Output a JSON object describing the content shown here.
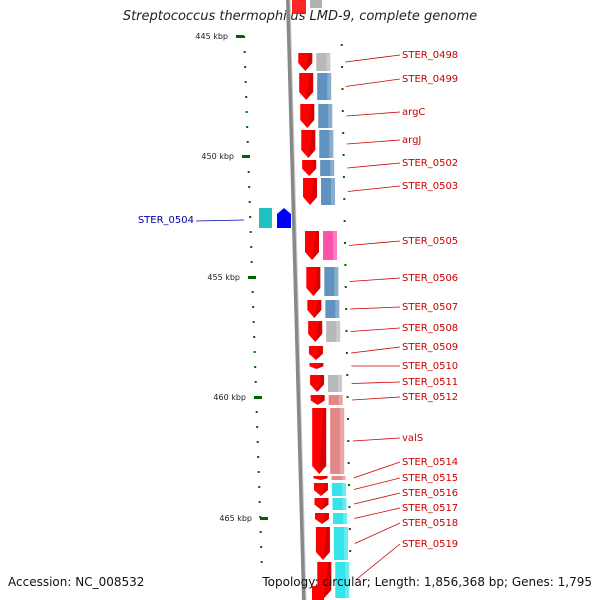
{
  "title": "Streptococcus thermophilus LMD-9, complete genome",
  "accession": "Accession: NC_008532",
  "summary": "Topology: circular; Length: 1,856,368 bp; Genes: 1,795",
  "colors": {
    "forward_gene": "#ff0000",
    "reverse_gene": "#0000ff",
    "backbone": "#888888",
    "tick": "#006400",
    "label_forward": "#cc0000",
    "label_reverse": "#0000aa",
    "category_steelblue": "#4f86b8",
    "category_grey": "#b0b0b0",
    "category_pink": "#ff3fa0",
    "category_salmon": "#e07a7a",
    "category_cyan": "#20e0e8",
    "category_teal": "#20c0c0"
  },
  "scale_labels": [
    "445 kbp",
    "450 kbp",
    "455 kbp",
    "460 kbp",
    "465 kbp"
  ],
  "genes": [
    {
      "label": "STER_0498",
      "strand": "forward",
      "category": "grey"
    },
    {
      "label": "STER_0499",
      "strand": "forward",
      "category": "steelblue"
    },
    {
      "label": "argC",
      "strand": "forward",
      "category": "steelblue"
    },
    {
      "label": "argJ",
      "strand": "forward",
      "category": "steelblue"
    },
    {
      "label": "STER_0502",
      "strand": "forward",
      "category": "steelblue"
    },
    {
      "label": "STER_0503",
      "strand": "forward",
      "category": "steelblue"
    },
    {
      "label": "STER_0504",
      "strand": "reverse",
      "category": "teal"
    },
    {
      "label": "STER_0505",
      "strand": "forward",
      "category": "pink"
    },
    {
      "label": "STER_0506",
      "strand": "forward",
      "category": "steelblue"
    },
    {
      "label": "STER_0507",
      "strand": "forward",
      "category": "steelblue"
    },
    {
      "label": "STER_0508",
      "strand": "forward",
      "category": "grey"
    },
    {
      "label": "STER_0509",
      "strand": "forward",
      "category": "none"
    },
    {
      "label": "STER_0510",
      "strand": "forward",
      "category": "none"
    },
    {
      "label": "STER_0511",
      "strand": "forward",
      "category": "grey"
    },
    {
      "label": "STER_0512",
      "strand": "forward",
      "category": "salmon"
    },
    {
      "label": "valS",
      "strand": "forward",
      "category": "salmon"
    },
    {
      "label": "STER_0514",
      "strand": "forward",
      "category": "salmon"
    },
    {
      "label": "STER_0515",
      "strand": "forward",
      "category": "cyan"
    },
    {
      "label": "STER_0516",
      "strand": "forward",
      "category": "cyan"
    },
    {
      "label": "STER_0517",
      "strand": "forward",
      "category": "cyan"
    },
    {
      "label": "STER_0518",
      "strand": "forward",
      "category": "cyan"
    },
    {
      "label": "STER_0519",
      "strand": "forward",
      "category": "cyan"
    }
  ]
}
